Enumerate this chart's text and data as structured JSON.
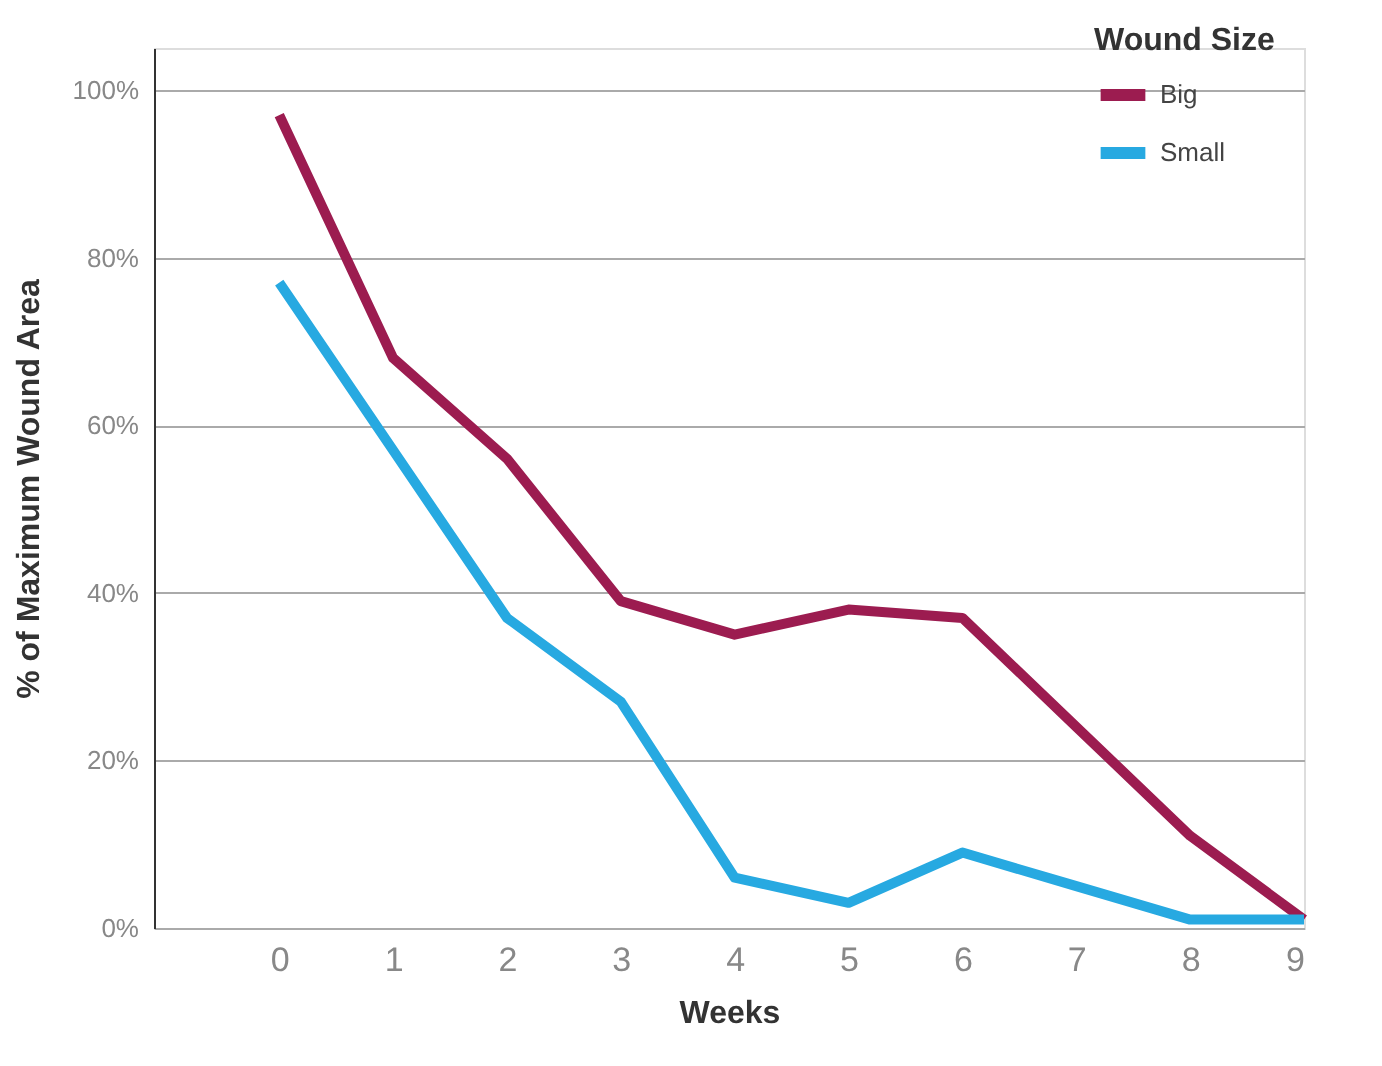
{
  "chart_data": {
    "type": "line",
    "xlabel": "Weeks",
    "ylabel": "% of Maximum Wound Area",
    "legend_title": "Wound Size",
    "legend": "top right",
    "grid": "y",
    "marker": "none",
    "line_style": "solid",
    "x": [
      0,
      1,
      2,
      3,
      4,
      5,
      6,
      7,
      8,
      9
    ],
    "xlim": [
      -1.1,
      9
    ],
    "xticks": [
      0,
      1,
      2,
      3,
      4,
      5,
      6,
      7,
      8,
      9
    ],
    "ylim": [
      0,
      105
    ],
    "yticks": [
      {
        "value": 0,
        "label": "0%"
      },
      {
        "value": 20,
        "label": "20%"
      },
      {
        "value": 40,
        "label": "40%"
      },
      {
        "value": 60,
        "label": "60%"
      },
      {
        "value": 80,
        "label": "80%"
      },
      {
        "value": 100,
        "label": "100%"
      }
    ],
    "series": [
      {
        "name": "Big",
        "color": "#9c1c50",
        "values": [
          97,
          68,
          56,
          39,
          35,
          38,
          37,
          24,
          11,
          1
        ]
      },
      {
        "name": "Small",
        "color": "#27a9e1",
        "values": [
          77,
          57,
          37,
          27,
          6,
          3,
          9,
          5,
          1,
          1
        ]
      }
    ]
  }
}
